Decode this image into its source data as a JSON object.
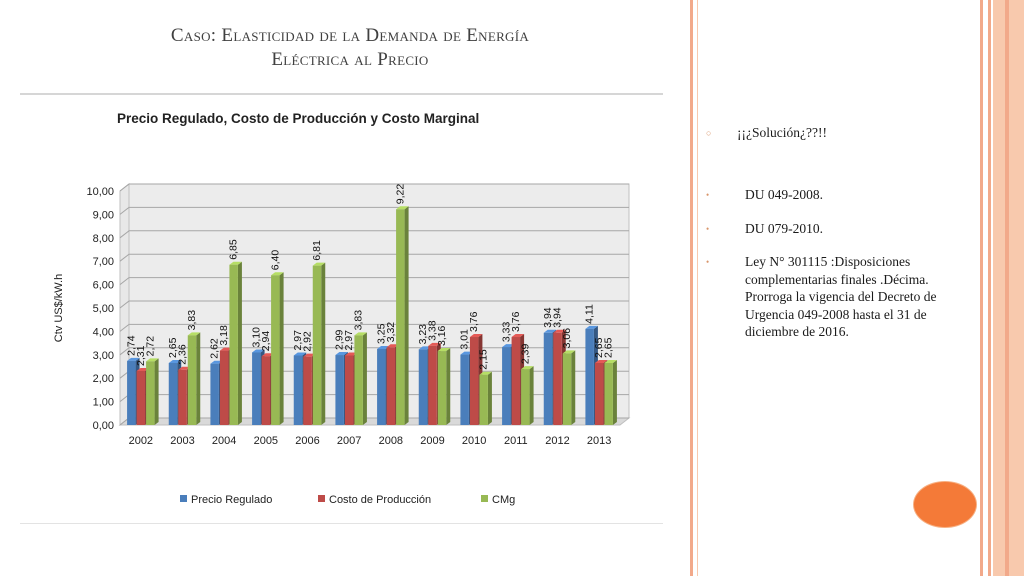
{
  "slide": {
    "title_line1": "Caso: Elasticidad de la Demanda de Energía",
    "title_line2": "Eléctrica al Precio"
  },
  "bullets": [
    {
      "marker": "○",
      "text": "¡¡¿Solución¿??!!"
    },
    {
      "marker": "•",
      "text": "DU 049-2008."
    },
    {
      "marker": "•",
      "text": "DU 079-2010."
    },
    {
      "marker": "•",
      "text": "Ley N° 301115 :Disposiciones complementarias finales .Décima. Prorroga la vigencia del Decreto de Urgencia 049-2008 hasta el 31 de diciembre de 2016."
    }
  ],
  "colors": {
    "accent_orange": "#f47a38",
    "stripe_peach": "#f8c9ad",
    "stripe_salmon": "#f2a98a"
  },
  "chart_data": {
    "type": "bar",
    "title": "Precio Regulado, Costo de Producción y Costo Marginal",
    "ylabel": "Ctv US$/kW.h",
    "xlabel": "",
    "ylim": [
      0,
      10
    ],
    "yticks": [
      "0,00",
      "1,00",
      "2,00",
      "3,00",
      "4,00",
      "5,00",
      "6,00",
      "7,00",
      "8,00",
      "9,00",
      "10,00"
    ],
    "categories": [
      "2002",
      "2003",
      "2004",
      "2005",
      "2006",
      "2007",
      "2008",
      "2009",
      "2010",
      "2011",
      "2012",
      "2013"
    ],
    "series": [
      {
        "name": "Precio Regulado",
        "color": "#4a7ebb",
        "values": [
          2.74,
          2.65,
          2.62,
          3.1,
          2.97,
          2.99,
          3.25,
          3.23,
          3.01,
          3.33,
          3.94,
          4.11
        ],
        "labels": [
          "2,74",
          "2,65",
          "2,62",
          "3,10",
          "2,97",
          "2,99",
          "3,25",
          "3,23",
          "3,01",
          "3,33",
          "3,94",
          "4,11"
        ]
      },
      {
        "name": "Costo de Producción",
        "color": "#be4b48",
        "values": [
          2.31,
          2.36,
          3.18,
          2.94,
          2.92,
          2.97,
          3.32,
          3.38,
          3.76,
          3.76,
          3.94,
          2.65
        ],
        "labels": [
          "2,31",
          "2,36",
          "3,18",
          "2,94",
          "2,92",
          "2,97",
          "3,32",
          "3,38",
          "3,76",
          "3,76",
          "3,94",
          "2,65"
        ]
      },
      {
        "name": "CMg",
        "color": "#98b954",
        "values": [
          2.72,
          3.83,
          6.85,
          6.4,
          6.81,
          3.83,
          9.22,
          3.16,
          2.15,
          2.39,
          3.06,
          2.65
        ],
        "labels": [
          "2,72",
          "3,83",
          "6,85",
          "6,40",
          "6,81",
          "3,83",
          "9,22",
          "3,16",
          "2,15",
          "2,39",
          "3,06",
          "2,65"
        ]
      }
    ],
    "legend_position": "bottom",
    "grid": true,
    "style": "3d-clustered-column"
  }
}
